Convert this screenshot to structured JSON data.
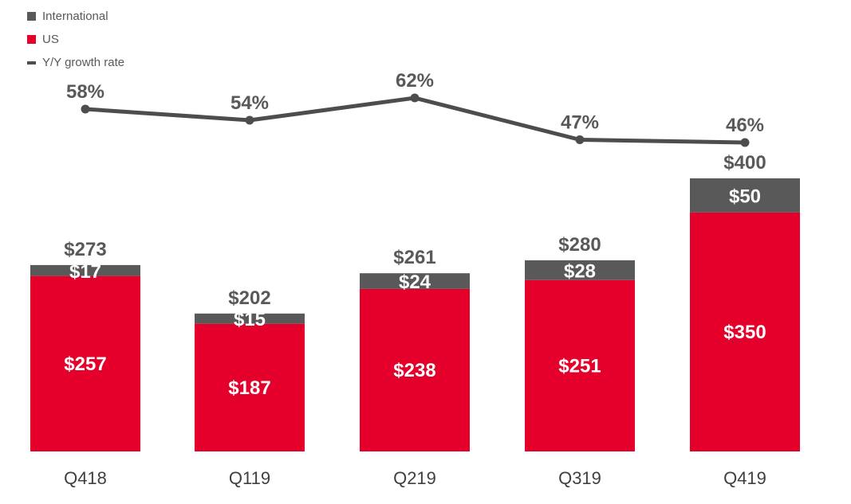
{
  "colors": {
    "international": "#595959",
    "us": "#e4002b",
    "growth_line": "#4d4d4d",
    "axis_text": "#404040",
    "total_label": "#595959",
    "bar_label": "#ffffff"
  },
  "legend": [
    {
      "label": "International",
      "kind": "square",
      "color": "#595959"
    },
    {
      "label": "US",
      "kind": "square",
      "color": "#e4002b"
    },
    {
      "label": "Y/Y growth rate",
      "kind": "line",
      "color": "#4d4d4d"
    }
  ],
  "chart_data": {
    "type": "bar",
    "stacked": true,
    "categories": [
      "Q418",
      "Q119",
      "Q219",
      "Q319",
      "Q419"
    ],
    "series": [
      {
        "name": "US",
        "values": [
          257,
          187,
          238,
          251,
          350
        ],
        "labels": [
          "$257",
          "$187",
          "$238",
          "$251",
          "$350"
        ]
      },
      {
        "name": "International",
        "values": [
          17,
          15,
          24,
          28,
          50
        ],
        "labels": [
          "$17",
          "$15",
          "$24",
          "$28",
          "$50"
        ]
      }
    ],
    "totals": [
      273,
      202,
      261,
      280,
      400
    ],
    "total_labels": [
      "$273",
      "$202",
      "$261",
      "$280",
      "$400"
    ],
    "growth_rate": {
      "name": "Y/Y growth rate",
      "values": [
        58,
        54,
        62,
        47,
        46
      ],
      "labels": [
        "58%",
        "54%",
        "62%",
        "47%",
        "46%"
      ]
    },
    "ylim": [
      0,
      400
    ],
    "grid": false,
    "legend_position": "top-left"
  }
}
